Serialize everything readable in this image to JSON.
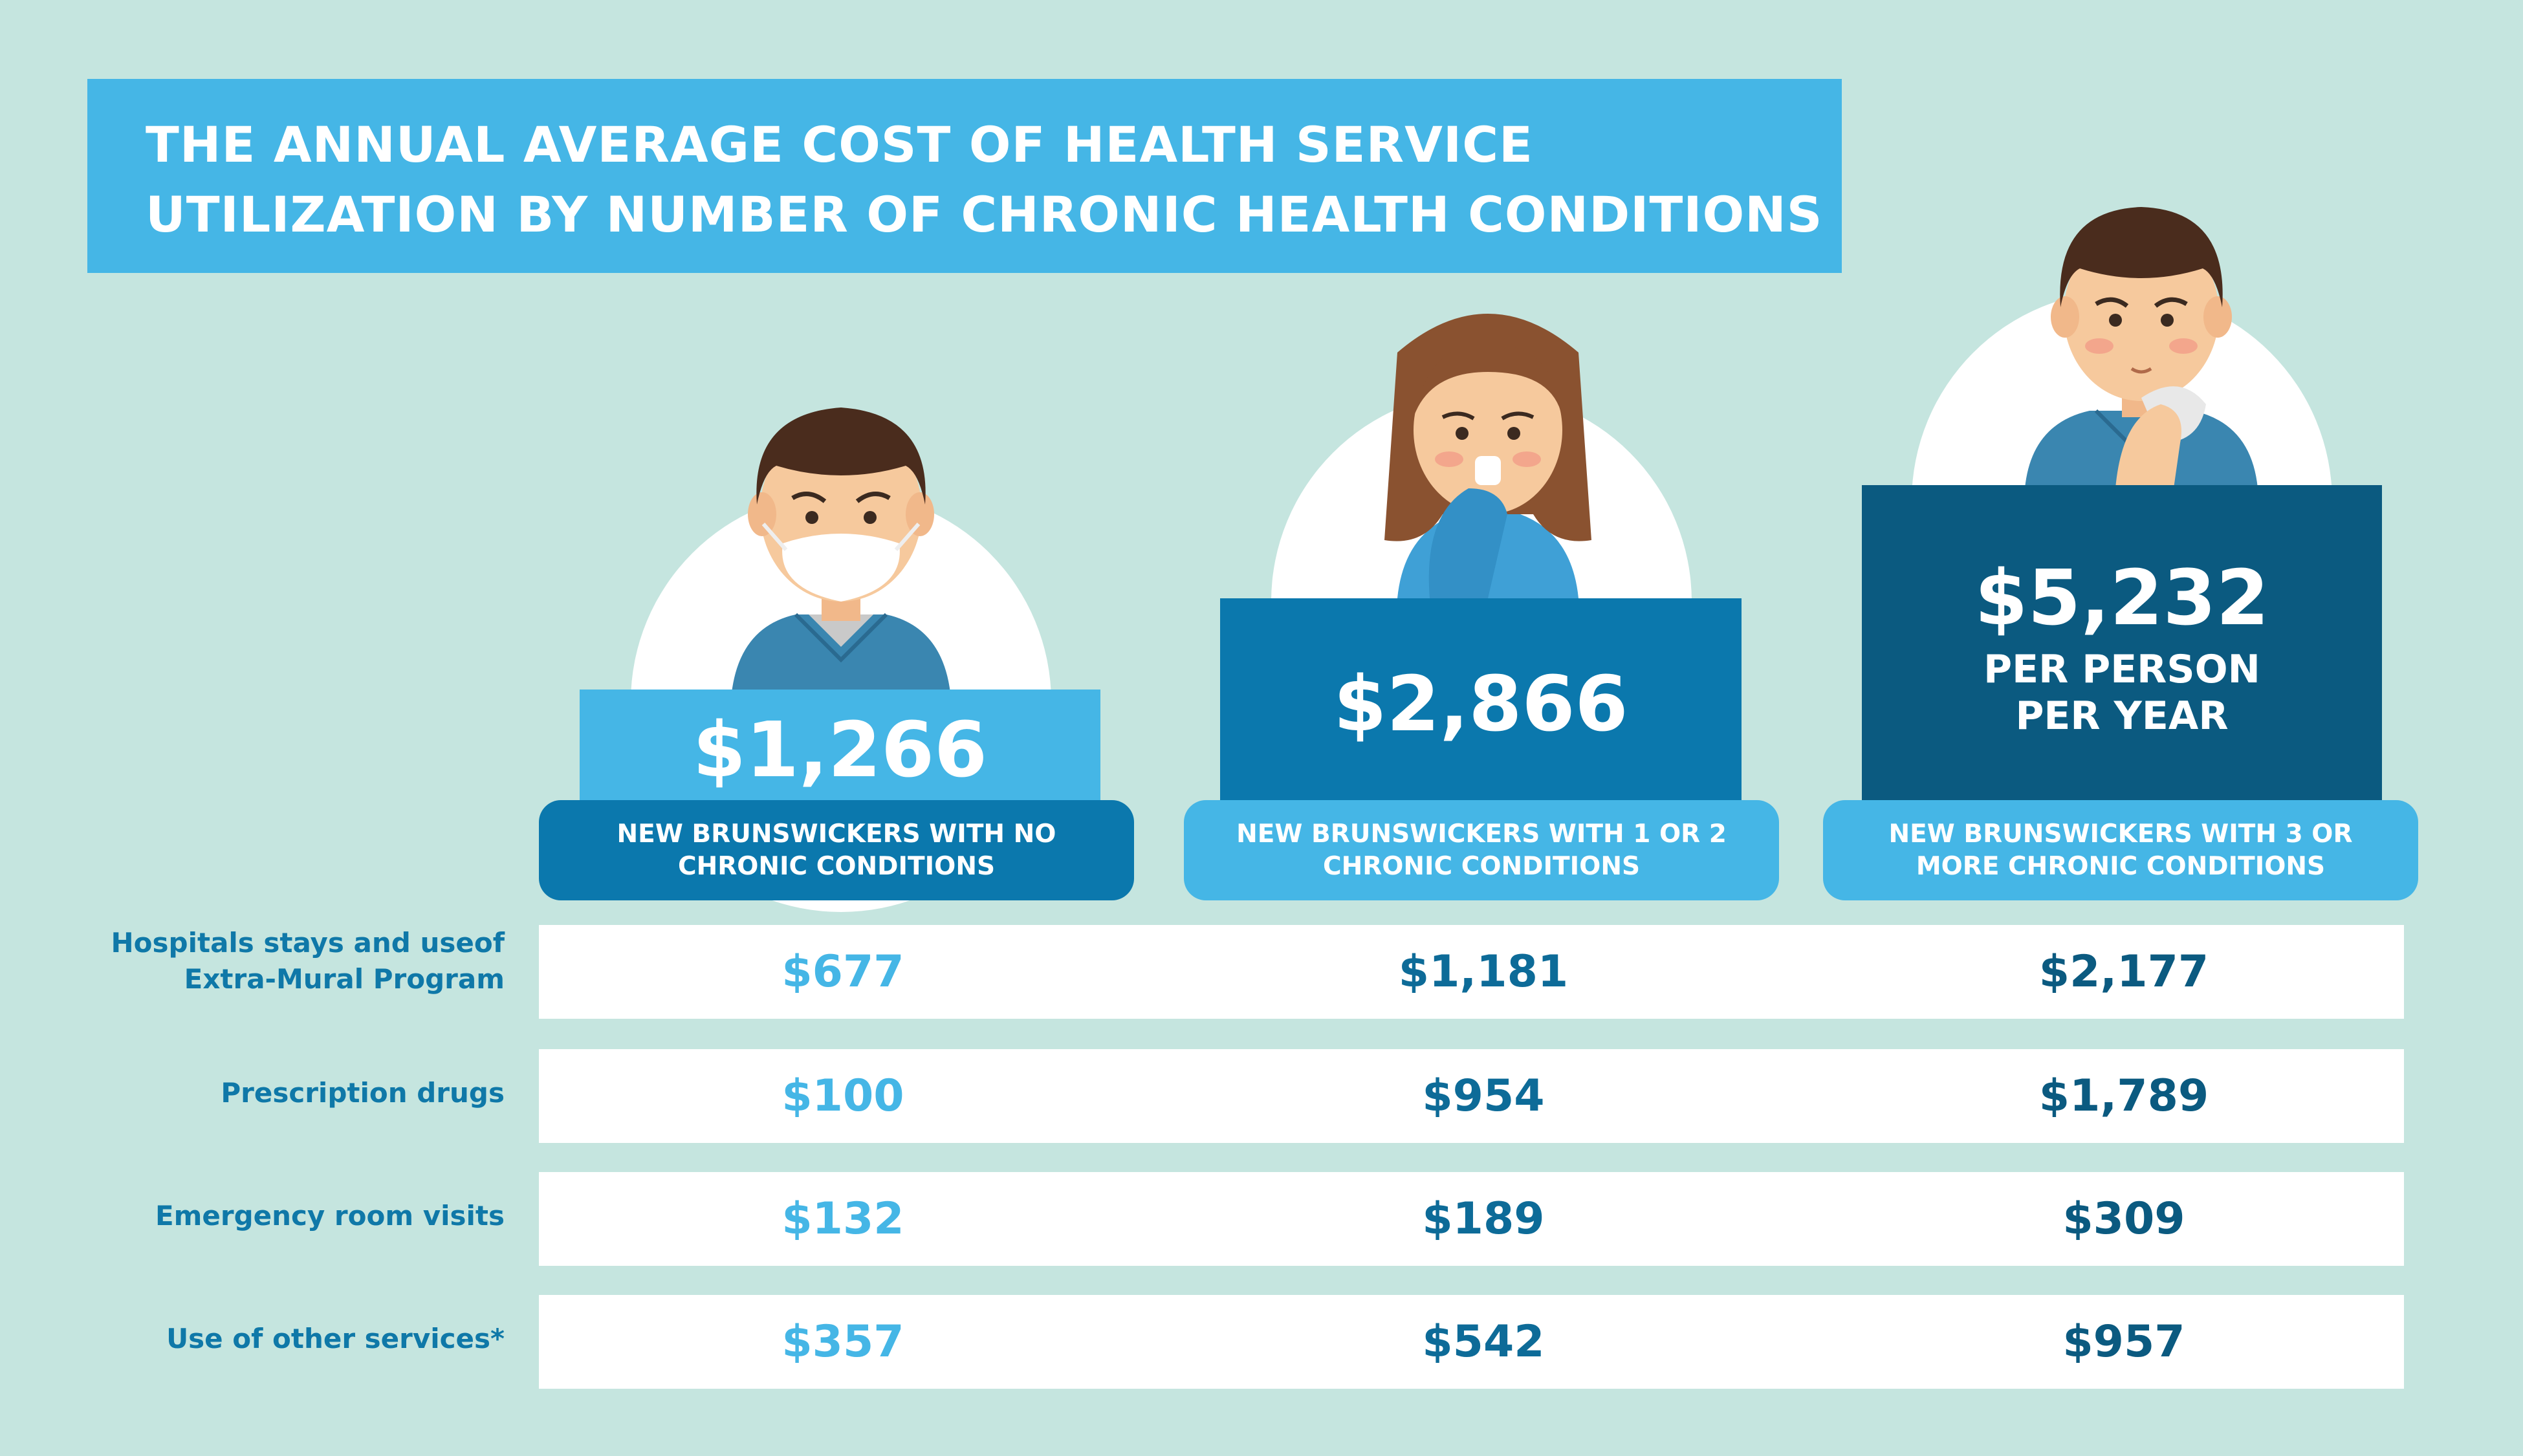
{
  "title": {
    "line1": "THE ANNUAL AVERAGE COST OF HEALTH SERVICE",
    "line2": "UTILIZATION BY NUMBER OF CHRONIC HEALTH CONDITIONS"
  },
  "groups": [
    {
      "amount": "$1,266",
      "label": "NEW BRUNSWICKERS WITH NO CHRONIC CONDITIONS"
    },
    {
      "amount": "$2,866",
      "label": "NEW BRUNSWICKERS WITH 1 OR 2 CHRONIC CONDITIONS"
    },
    {
      "amount": "$5,232",
      "sub1": "PER PERSON",
      "sub2": "PER YEAR",
      "label": "NEW BRUNSWICKERS WITH 3 OR MORE CHRONIC CONDITIONS"
    }
  ],
  "rows": [
    {
      "label": "Hospitals stays and useof Extra-Mural Program",
      "values": [
        "$677",
        "$1,181",
        "$2,177"
      ]
    },
    {
      "label": "Prescription drugs",
      "values": [
        "$100",
        "$954",
        "$1,789"
      ]
    },
    {
      "label": "Emergency room visits",
      "values": [
        "$132",
        "$189",
        "$309"
      ]
    },
    {
      "label": "Use of other services*",
      "values": [
        "$357",
        "$542",
        "$957"
      ]
    }
  ],
  "colors": {
    "background": "#c5e5df",
    "light_blue": "#45b6e6",
    "mid_blue": "#0b78ad",
    "dark_blue": "#0b5a80"
  },
  "icons": [
    "masked-man-icon",
    "sick-woman-icon",
    "sick-man-icon"
  ]
}
